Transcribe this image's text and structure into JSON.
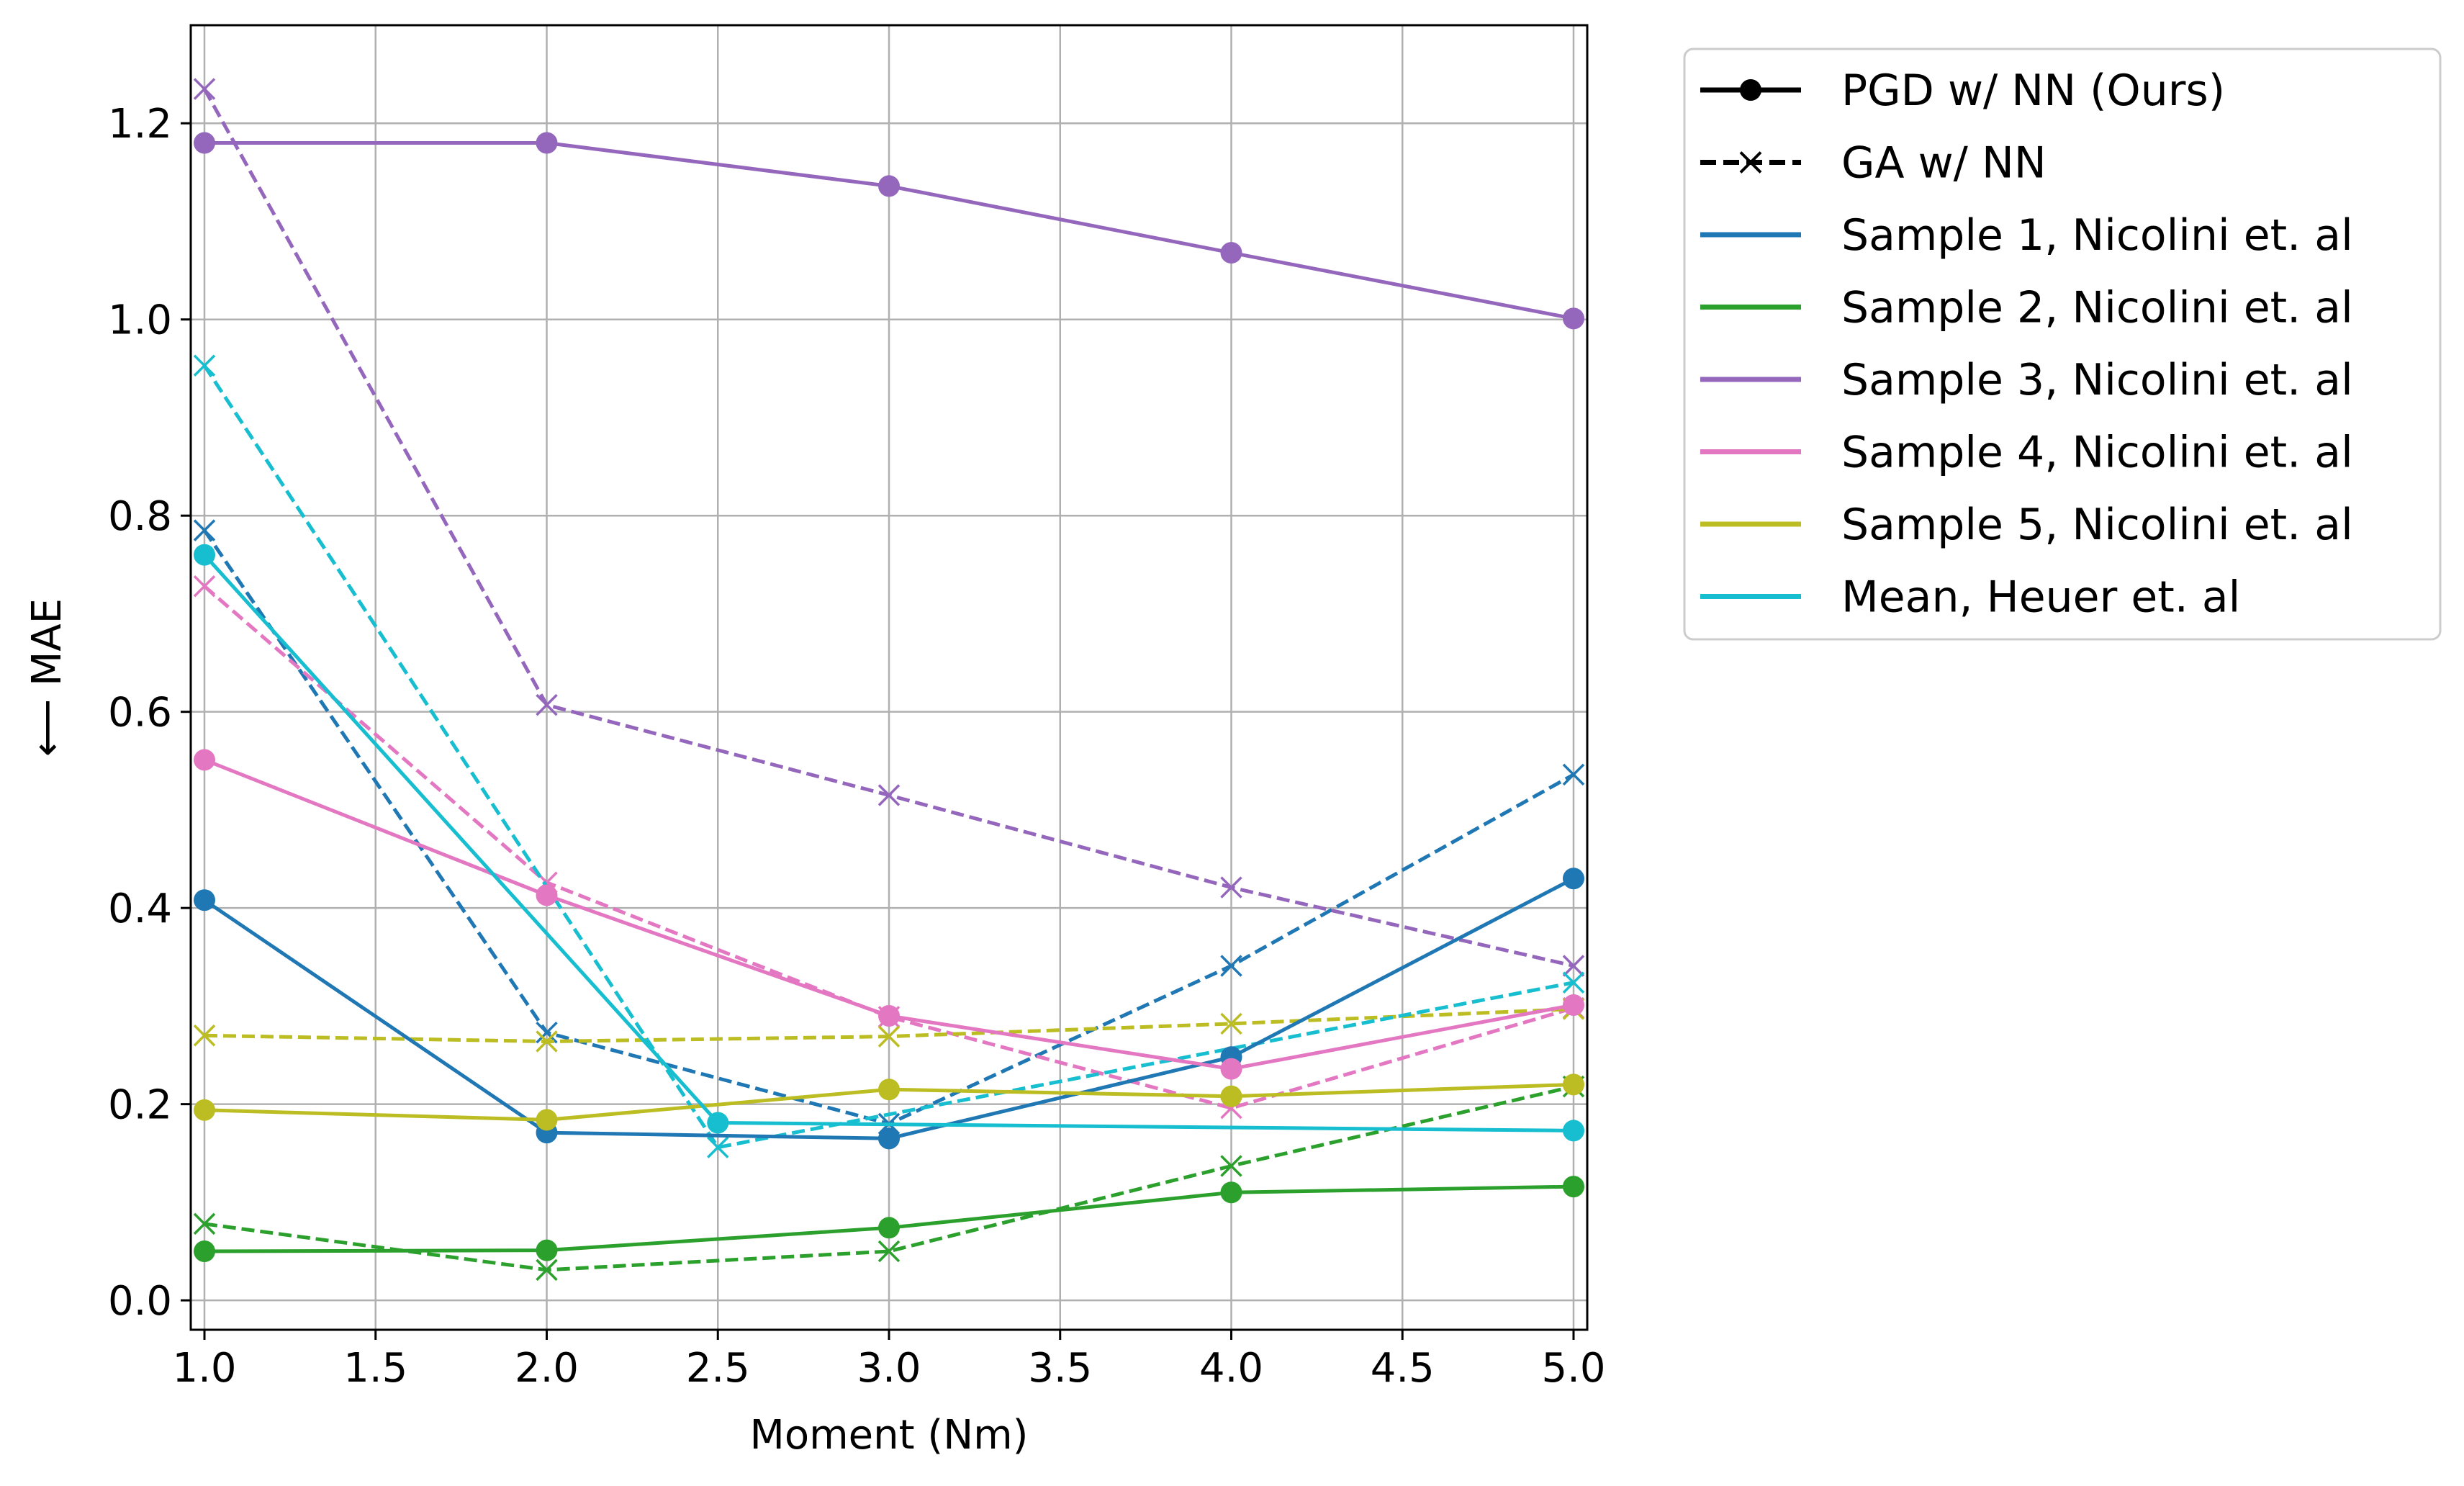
{
  "chart_data": {
    "type": "line",
    "xlabel": "Moment (Nm)",
    "ylabel": "⟵ MAE",
    "xlim": [
      0.96,
      5.04
    ],
    "ylim": [
      -0.03,
      1.3
    ],
    "x_ticks": [
      1.0,
      1.5,
      2.0,
      2.5,
      3.0,
      3.5,
      4.0,
      4.5,
      5.0
    ],
    "x_tick_labels": [
      "1.0",
      "1.5",
      "2.0",
      "2.5",
      "3.0",
      "3.5",
      "4.0",
      "4.5",
      "5.0"
    ],
    "y_ticks": [
      0.0,
      0.2,
      0.4,
      0.6,
      0.8,
      1.0,
      1.2
    ],
    "y_tick_labels": [
      "0.0",
      "0.2",
      "0.4",
      "0.6",
      "0.8",
      "1.0",
      "1.2"
    ],
    "grid": true,
    "legend_position": "outside-right-top",
    "legend": [
      {
        "label": "PGD w/ NN (Ours)",
        "color": "#000000",
        "style": "solid",
        "marker": "circle"
      },
      {
        "label": "GA w/ NN",
        "color": "#000000",
        "style": "dashed",
        "marker": "x"
      },
      {
        "label": "Sample 1, Nicolini et. al",
        "color": "#1f77b4",
        "style": "solid",
        "marker": "none"
      },
      {
        "label": "Sample 2, Nicolini et. al",
        "color": "#2ca02c",
        "style": "solid",
        "marker": "none"
      },
      {
        "label": "Sample 3, Nicolini et. al",
        "color": "#9467bd",
        "style": "solid",
        "marker": "none"
      },
      {
        "label": "Sample 4, Nicolini et. al",
        "color": "#e377c2",
        "style": "solid",
        "marker": "none"
      },
      {
        "label": "Sample 5, Nicolini et. al",
        "color": "#bcbd22",
        "style": "solid",
        "marker": "none"
      },
      {
        "label": "Mean, Heuer et. al",
        "color": "#17becf",
        "style": "solid",
        "marker": "none"
      }
    ],
    "series": [
      {
        "name": "Sample 1 PGD",
        "color": "#1f77b4",
        "style": "solid",
        "marker": "circle",
        "x": [
          1,
          2,
          3,
          4,
          5
        ],
        "y": [
          0.408,
          0.171,
          0.165,
          0.248,
          0.43
        ]
      },
      {
        "name": "Sample 2 PGD",
        "color": "#2ca02c",
        "style": "solid",
        "marker": "circle",
        "x": [
          1,
          2,
          3,
          4,
          5
        ],
        "y": [
          0.05,
          0.051,
          0.074,
          0.11,
          0.116
        ]
      },
      {
        "name": "Sample 3 PGD",
        "color": "#9467bd",
        "style": "solid",
        "marker": "circle",
        "x": [
          1,
          2,
          3,
          4,
          5
        ],
        "y": [
          1.18,
          1.18,
          1.136,
          1.068,
          1.001
        ]
      },
      {
        "name": "Sample 4 PGD",
        "color": "#e377c2",
        "style": "solid",
        "marker": "circle",
        "x": [
          1,
          2,
          3,
          4,
          5
        ],
        "y": [
          0.551,
          0.413,
          0.29,
          0.236,
          0.301
        ]
      },
      {
        "name": "Sample 5 PGD",
        "color": "#bcbd22",
        "style": "solid",
        "marker": "circle",
        "x": [
          1,
          2,
          3,
          4,
          5
        ],
        "y": [
          0.194,
          0.184,
          0.215,
          0.208,
          0.22
        ]
      },
      {
        "name": "Mean PGD",
        "color": "#17becf",
        "style": "solid",
        "marker": "circle",
        "x": [
          1,
          2.5,
          5
        ],
        "y": [
          0.76,
          0.181,
          0.173
        ]
      },
      {
        "name": "Sample 1 GA",
        "color": "#1f77b4",
        "style": "dashed",
        "marker": "x",
        "x": [
          1,
          2,
          3,
          4,
          5
        ],
        "y": [
          0.785,
          0.273,
          0.18,
          0.341,
          0.536
        ]
      },
      {
        "name": "Sample 2 GA",
        "color": "#2ca02c",
        "style": "dashed",
        "marker": "x",
        "x": [
          1,
          2,
          3,
          4,
          5
        ],
        "y": [
          0.078,
          0.031,
          0.05,
          0.137,
          0.218
        ]
      },
      {
        "name": "Sample 3 GA",
        "color": "#9467bd",
        "style": "dashed",
        "marker": "x",
        "x": [
          1,
          2,
          3,
          4,
          5
        ],
        "y": [
          1.235,
          0.607,
          0.515,
          0.421,
          0.341
        ]
      },
      {
        "name": "Sample 4 GA",
        "color": "#e377c2",
        "style": "dashed",
        "marker": "x",
        "x": [
          1,
          2,
          3,
          4,
          5
        ],
        "y": [
          0.728,
          0.426,
          0.289,
          0.196,
          0.298
        ]
      },
      {
        "name": "Sample 5 GA",
        "color": "#bcbd22",
        "style": "dashed",
        "marker": "x",
        "x": [
          1,
          2,
          3,
          4,
          5
        ],
        "y": [
          0.27,
          0.264,
          0.269,
          0.282,
          0.297
        ]
      },
      {
        "name": "Mean GA",
        "color": "#17becf",
        "style": "dashed",
        "marker": "x",
        "x": [
          1,
          2.5,
          5
        ],
        "y": [
          0.953,
          0.156,
          0.324
        ]
      }
    ]
  }
}
